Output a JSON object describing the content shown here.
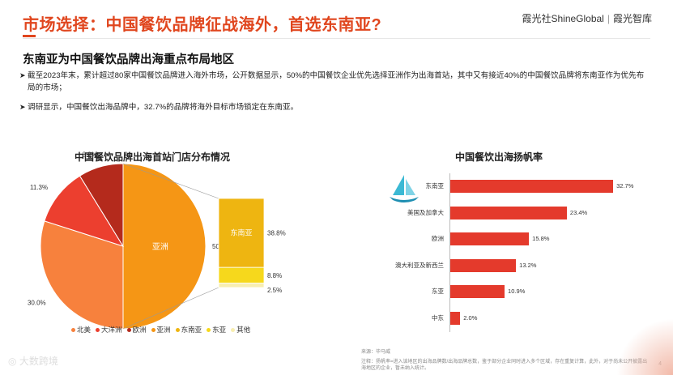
{
  "header": {
    "title": "市场选择：中国餐饮品牌征战海外，首选东南亚?",
    "brand_left": "霞光社ShineGlobal",
    "brand_sep": "|",
    "brand_right": "霞光智库"
  },
  "subtitle": "东南亚为中国餐饮品牌出海重点布局地区",
  "bullets": [
    "截至2023年末，累计超过80家中国餐饮品牌进入海外市场，公开数据显示，50%的中国餐饮企业优先选择亚洲作为出海首站，其中又有接近40%的中国餐饮品牌将东南亚作为优先布局的市场；",
    "调研显示，中国餐饮出海品牌中，32.7%的品牌将海外目标市场锁定在东南亚。"
  ],
  "chart_data": [
    {
      "type": "pie",
      "title": "中国餐饮品牌出海首站门店分布情况",
      "slices": [
        {
          "label": "亚洲",
          "value": 50.1,
          "value_label": "50.1%"
        },
        {
          "label": "北美",
          "value": 30.0,
          "value_label": "30.0%"
        },
        {
          "label": "大洋洲",
          "value": 11.3,
          "value_label": "11.3%"
        },
        {
          "label": "欧洲",
          "value": 8.8,
          "value_label": "8.8%"
        }
      ],
      "breakdown": {
        "of": "亚洲",
        "segments": [
          {
            "label": "东南亚",
            "value": 38.8,
            "value_label": "38.8%"
          },
          {
            "label": "东亚",
            "value": 8.8,
            "value_label": "8.8%"
          },
          {
            "label": "其他",
            "value": 2.5,
            "value_label": "2.5%"
          }
        ]
      },
      "legend": [
        "北美",
        "大洋洲",
        "欧洲",
        "亚洲",
        "东南亚",
        "东亚",
        "其他"
      ],
      "legend_placement": "bottom"
    },
    {
      "type": "bar",
      "orientation": "horizontal",
      "title": "中国餐饮出海扬帆率",
      "categories": [
        "东南亚",
        "美国及加拿大",
        "欧洲",
        "澳大利亚及新西兰",
        "东亚",
        "中东"
      ],
      "values": [
        32.7,
        23.4,
        15.8,
        13.2,
        10.9,
        2.0
      ],
      "value_labels": [
        "32.7%",
        "23.4%",
        "15.8%",
        "13.2%",
        "10.9%",
        "2.0%"
      ],
      "xlim": [
        0,
        40
      ],
      "grid": false
    }
  ],
  "colors": {
    "北美": "#f7813d",
    "大洋洲": "#ec3f2f",
    "欧洲": "#b42a1c",
    "亚洲": "#f59615",
    "东南亚": "#eeb511",
    "东亚": "#f6d81c",
    "其他": "#f8eeb0",
    "bar": "#e43a2c",
    "title": "#e0461e"
  },
  "footer": {
    "source": "来源：毕马威",
    "note": "注释：扬帆率=进入该地区的出海品牌数/出海品牌总数，鉴于部分企业同时进入多个区域，存在重复计算，此外，对于尚未公开披露出海地区的企业，暂未纳入统计。",
    "page": "4"
  },
  "watermark": "大数跨境"
}
